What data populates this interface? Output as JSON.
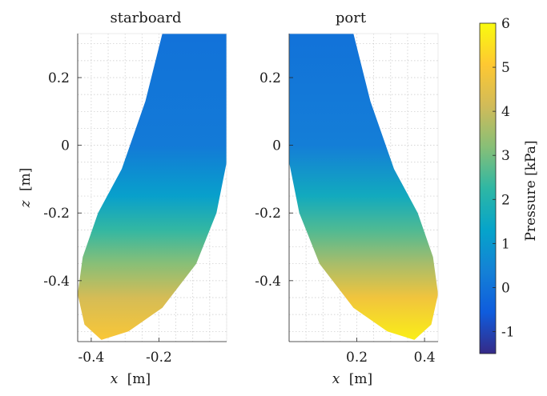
{
  "chart_data": [
    {
      "type": "heatmap",
      "title": "starboard",
      "xlabel_var": "x",
      "xlabel_unit": "[m]",
      "ylabel_var": "z",
      "ylabel_unit": "[m]",
      "xlim": [
        -0.44,
        0.0
      ],
      "ylim": [
        -0.58,
        0.33
      ],
      "xticks": [
        -0.4,
        -0.2
      ],
      "xtick_labels": [
        "-0.4",
        "-0.2"
      ],
      "yticks": [
        0.2,
        0,
        -0.2,
        -0.4
      ],
      "ytick_labels": [
        "0.2",
        "0",
        "-0.2",
        "-0.4"
      ],
      "grid": "dotted minor",
      "outline": [
        [
          -0.19,
          0.33
        ],
        [
          0.0,
          0.33
        ],
        [
          0.0,
          -0.05
        ],
        [
          -0.03,
          -0.2
        ],
        [
          -0.09,
          -0.35
        ],
        [
          -0.19,
          -0.48
        ],
        [
          -0.29,
          -0.55
        ],
        [
          -0.37,
          -0.575
        ],
        [
          -0.42,
          -0.53
        ],
        [
          -0.44,
          -0.44
        ],
        [
          -0.425,
          -0.33
        ],
        [
          -0.38,
          -0.2
        ],
        [
          -0.31,
          -0.07
        ],
        [
          -0.24,
          0.13
        ]
      ],
      "pressure_stops": [
        {
          "z": 0.33,
          "kPa": 0.0
        },
        {
          "z": 0.0,
          "kPa": 0.2
        },
        {
          "z": -0.15,
          "kPa": 1.2
        },
        {
          "z": -0.25,
          "kPa": 2.3
        },
        {
          "z": -0.35,
          "kPa": 3.2
        },
        {
          "z": -0.45,
          "kPa": 4.2
        },
        {
          "z": -0.58,
          "kPa": 5.0
        }
      ]
    },
    {
      "type": "heatmap",
      "title": "port",
      "xlabel_var": "x",
      "xlabel_unit": "[m]",
      "xlim": [
        0.0,
        0.44
      ],
      "ylim": [
        -0.58,
        0.33
      ],
      "xticks": [
        0.2,
        0.4
      ],
      "xtick_labels": [
        "0.2",
        "0.4"
      ],
      "yticks": [
        0.2,
        0,
        -0.2,
        -0.4
      ],
      "ytick_labels": [
        "0.2",
        "0",
        "-0.2",
        "-0.4"
      ],
      "grid": "dotted minor",
      "outline": [
        [
          0.0,
          0.33
        ],
        [
          0.19,
          0.33
        ],
        [
          0.24,
          0.13
        ],
        [
          0.31,
          -0.07
        ],
        [
          0.38,
          -0.2
        ],
        [
          0.425,
          -0.33
        ],
        [
          0.44,
          -0.44
        ],
        [
          0.42,
          -0.53
        ],
        [
          0.37,
          -0.575
        ],
        [
          0.29,
          -0.55
        ],
        [
          0.19,
          -0.48
        ],
        [
          0.09,
          -0.35
        ],
        [
          0.03,
          -0.2
        ],
        [
          0.0,
          -0.05
        ]
      ],
      "pressure_stops": [
        {
          "z": 0.33,
          "kPa": 0.0
        },
        {
          "z": 0.0,
          "kPa": 0.3
        },
        {
          "z": -0.15,
          "kPa": 1.6
        },
        {
          "z": -0.25,
          "kPa": 2.6
        },
        {
          "z": -0.35,
          "kPa": 3.6
        },
        {
          "z": -0.45,
          "kPa": 4.8
        },
        {
          "z": -0.58,
          "kPa": 5.8
        }
      ]
    }
  ],
  "colorbar": {
    "label": "Pressure [kPa]",
    "clim": [
      -1.5,
      6.0
    ],
    "ticks": [
      6,
      5,
      4,
      3,
      2,
      1,
      0,
      -1
    ],
    "tick_labels": [
      "6",
      "5",
      "4",
      "3",
      "2",
      "1",
      "0",
      "-1"
    ],
    "colormap": "parula",
    "colors": [
      "#352a87",
      "#0f5cdd",
      "#1481d6",
      "#06a4ca",
      "#2eb7a4",
      "#87bf77",
      "#d1bb59",
      "#fec832",
      "#f9fb0e"
    ]
  }
}
